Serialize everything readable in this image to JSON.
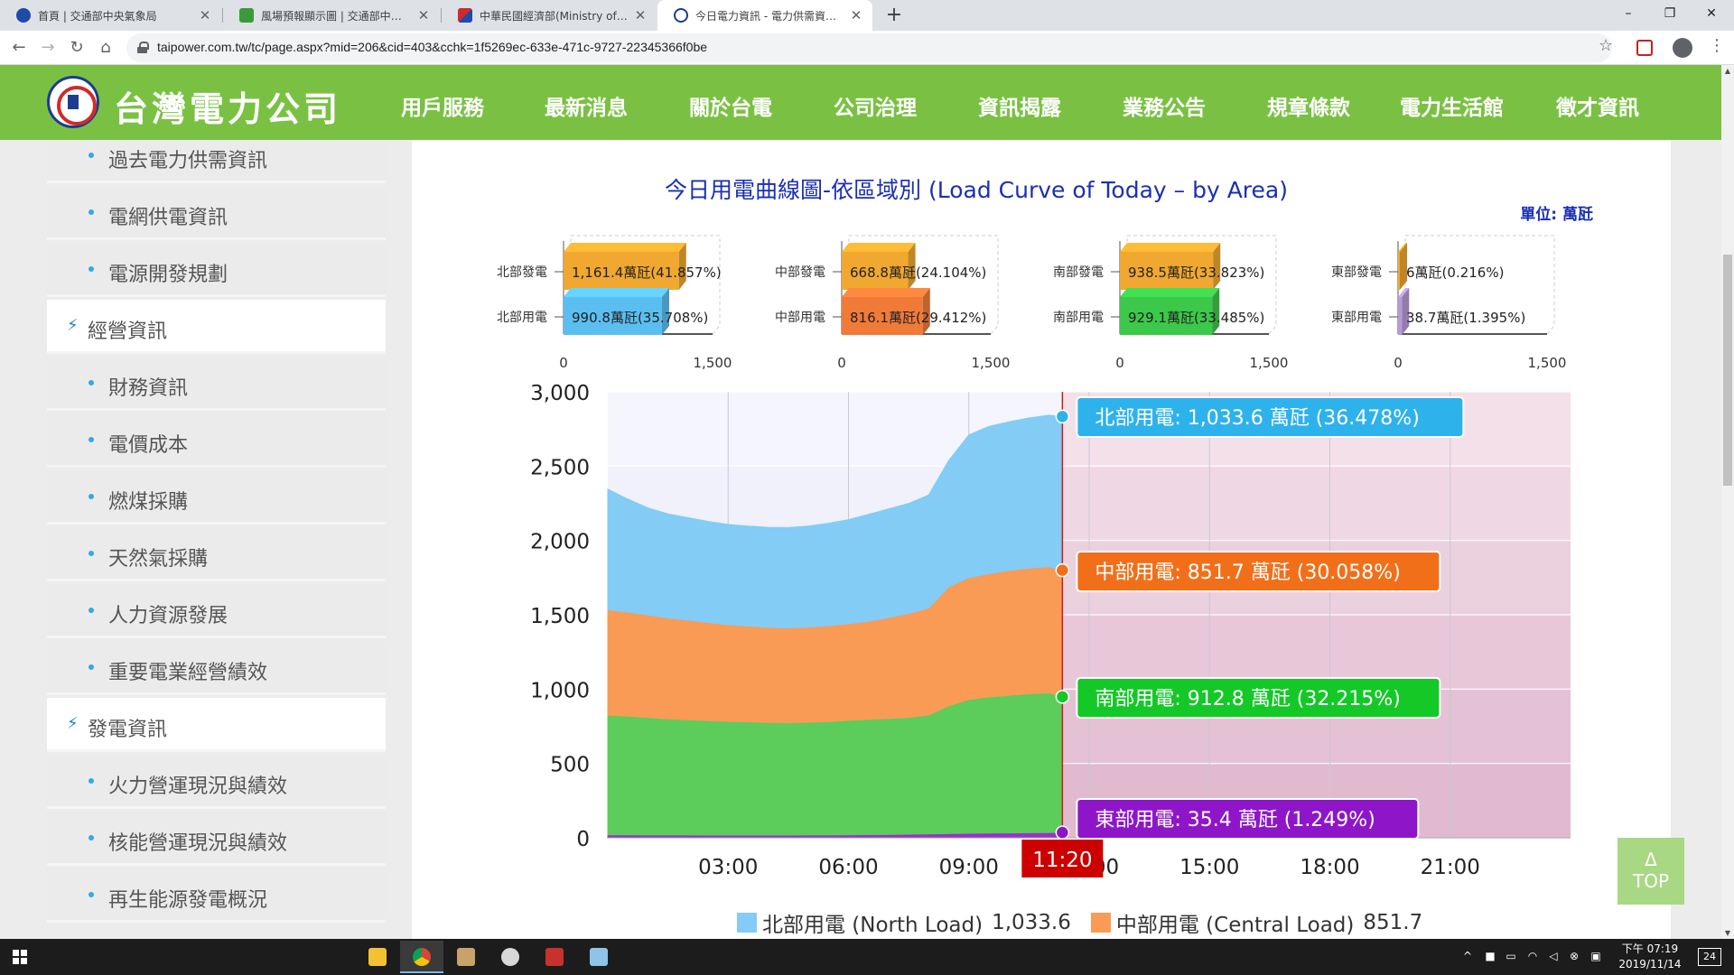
{
  "browser": {
    "tabs": [
      {
        "title": "首頁 | 交通部中央氣象局",
        "active": false
      },
      {
        "title": "風場預報顯示圖 | 交通部中央氣象局",
        "active": false
      },
      {
        "title": "中華民國經濟部(Ministry of Economic Affairs)",
        "active": false
      },
      {
        "title": "今日電力資訊 - 電力供需資訊 - 台灣電力公司",
        "active": true
      }
    ],
    "new_tab": "+",
    "url": "taipower.com.tw/tc/page.aspx?mid=206&cid=403&cchk=1f5269ec-633e-471c-9727-22345366f0be",
    "window_controls": [
      "–",
      "❐",
      "✕"
    ]
  },
  "site": {
    "logo_text": "台灣電力公司",
    "nav": [
      "用戶服務",
      "最新消息",
      "關於台電",
      "公司治理",
      "資訊揭露",
      "業務公告",
      "規章條款",
      "電力生活館",
      "徵才資訊"
    ],
    "active_nav_index": 4
  },
  "sidebar": {
    "items": [
      {
        "type": "item",
        "label": "過去電力供需資訊"
      },
      {
        "type": "item",
        "label": "電網供電資訊"
      },
      {
        "type": "item",
        "label": "電源開發規劃"
      },
      {
        "type": "category",
        "label": "經營資訊"
      },
      {
        "type": "item",
        "label": "財務資訊"
      },
      {
        "type": "item",
        "label": "電價成本"
      },
      {
        "type": "item",
        "label": "燃煤採購"
      },
      {
        "type": "item",
        "label": "天然氣採購"
      },
      {
        "type": "item",
        "label": "人力資源發展"
      },
      {
        "type": "item",
        "label": "重要電業經營績效"
      },
      {
        "type": "category",
        "label": "發電資訊"
      },
      {
        "type": "item",
        "label": "火力營運現況與績效"
      },
      {
        "type": "item",
        "label": "核能營運現況與績效"
      },
      {
        "type": "item",
        "label": "再生能源發電概況"
      }
    ]
  },
  "chart": {
    "title": "今日用電曲線圖-依區域別 (Load Curve of Today – by Area)",
    "unit": "單位: 萬瓩"
  },
  "chart_data": [
    {
      "type": "bar",
      "orientation": "horizontal",
      "panel": "北部",
      "categories": [
        "北部發電",
        "北部用電"
      ],
      "values": [
        1161.4,
        990.8
      ],
      "data_labels": [
        "1,161.4萬瓩(41.857%)",
        "990.8萬瓩(35.708%)"
      ],
      "colors": [
        "#f0a830",
        "#5bbef0"
      ],
      "xlim": [
        0,
        1500
      ],
      "ticks": [
        "0",
        "1,500"
      ]
    },
    {
      "type": "bar",
      "orientation": "horizontal",
      "panel": "中部",
      "categories": [
        "中部發電",
        "中部用電"
      ],
      "values": [
        668.8,
        816.1
      ],
      "data_labels": [
        "668.8萬瓩(24.104%)",
        "816.1萬瓩(29.412%)"
      ],
      "colors": [
        "#f0a830",
        "#f07a38"
      ],
      "xlim": [
        0,
        1500
      ],
      "ticks": [
        "0",
        "1,500"
      ]
    },
    {
      "type": "bar",
      "orientation": "horizontal",
      "panel": "南部",
      "categories": [
        "南部發電",
        "南部用電"
      ],
      "values": [
        938.5,
        929.1
      ],
      "data_labels": [
        "938.5萬瓩(33.823%)",
        "929.1萬瓩(33.485%)"
      ],
      "colors": [
        "#f0a830",
        "#3cc84a"
      ],
      "xlim": [
        0,
        1500
      ],
      "ticks": [
        "0",
        "1,500"
      ]
    },
    {
      "type": "bar",
      "orientation": "horizontal",
      "panel": "東部",
      "categories": [
        "東部發電",
        "東部用電"
      ],
      "values": [
        6,
        38.7
      ],
      "data_labels": [
        "6萬瓩(0.216%)",
        "38.7萬瓩(1.395%)"
      ],
      "colors": [
        "#f0a830",
        "#b89ad8"
      ],
      "xlim": [
        0,
        1500
      ],
      "ticks": [
        "0",
        "1,500"
      ]
    },
    {
      "type": "area",
      "stacked": true,
      "x": [
        "00:00",
        "00:30",
        "01:00",
        "01:30",
        "02:00",
        "02:30",
        "03:00",
        "03:30",
        "04:00",
        "04:30",
        "05:00",
        "05:30",
        "06:00",
        "06:30",
        "07:00",
        "07:30",
        "08:00",
        "08:30",
        "09:00",
        "09:30",
        "10:00",
        "10:30",
        "11:00",
        "11:20"
      ],
      "x_ticks": [
        "03:00",
        "06:00",
        "09:00",
        "12:00",
        "15:00",
        "18:00",
        "21:00"
      ],
      "xlim": [
        "00:00",
        "24:00"
      ],
      "ylim": [
        0,
        3000
      ],
      "y_ticks": [
        "0",
        "500",
        "1,000",
        "1,500",
        "2,000",
        "2,500",
        "3,000"
      ],
      "series": [
        {
          "name": "東部用電",
          "color": "#9b2fd1",
          "values": [
            20,
            20,
            19,
            19,
            19,
            18,
            18,
            18,
            18,
            18,
            19,
            19,
            20,
            21,
            22,
            24,
            26,
            28,
            30,
            32,
            33,
            34,
            35,
            35.4
          ]
        },
        {
          "name": "南部用電",
          "color": "#5ccc5a",
          "values": [
            805,
            798,
            790,
            780,
            775,
            770,
            765,
            762,
            758,
            756,
            758,
            762,
            770,
            775,
            780,
            785,
            800,
            860,
            900,
            915,
            925,
            935,
            940,
            912.8
          ]
        },
        {
          "name": "中部用電",
          "color": "#f99b55",
          "values": [
            710,
            700,
            690,
            680,
            670,
            660,
            650,
            645,
            640,
            638,
            640,
            645,
            650,
            660,
            680,
            700,
            720,
            800,
            820,
            830,
            840,
            845,
            848,
            851.7
          ]
        },
        {
          "name": "北部用電",
          "color": "#82ccf5",
          "values": [
            810,
            760,
            720,
            700,
            690,
            680,
            675,
            672,
            672,
            675,
            680,
            690,
            700,
            720,
            730,
            740,
            760,
            850,
            960,
            990,
            1000,
            1010,
            1020,
            1033.6
          ]
        }
      ],
      "cursor": {
        "time": "11:20",
        "fraction": 0.4722
      },
      "tooltips": [
        {
          "label": "北部用電: 1,033.6 萬瓩 (36.478%)",
          "color": "#2eb2ec"
        },
        {
          "label": "中部用電: 851.7 萬瓩 (30.058%)",
          "color": "#f26f1a"
        },
        {
          "label": "南部用電: 912.8 萬瓩 (32.215%)",
          "color": "#14c828"
        },
        {
          "label": "東部用電: 35.4 萬瓩 (1.249%)",
          "color": "#8e16c8"
        }
      ],
      "legend": [
        {
          "name": "北部用電 (North Load)",
          "value": "1,033.6",
          "color": "#82ccf5"
        },
        {
          "name": "中部用電 (Central Load)",
          "value": "851.7",
          "color": "#f99b55"
        }
      ]
    }
  ],
  "top_button": {
    "arrow": "Δ",
    "label": "TOP"
  },
  "taskbar": {
    "clock_time": "下午 07:19",
    "clock_date": "2019/11/14",
    "notifications": "24"
  }
}
